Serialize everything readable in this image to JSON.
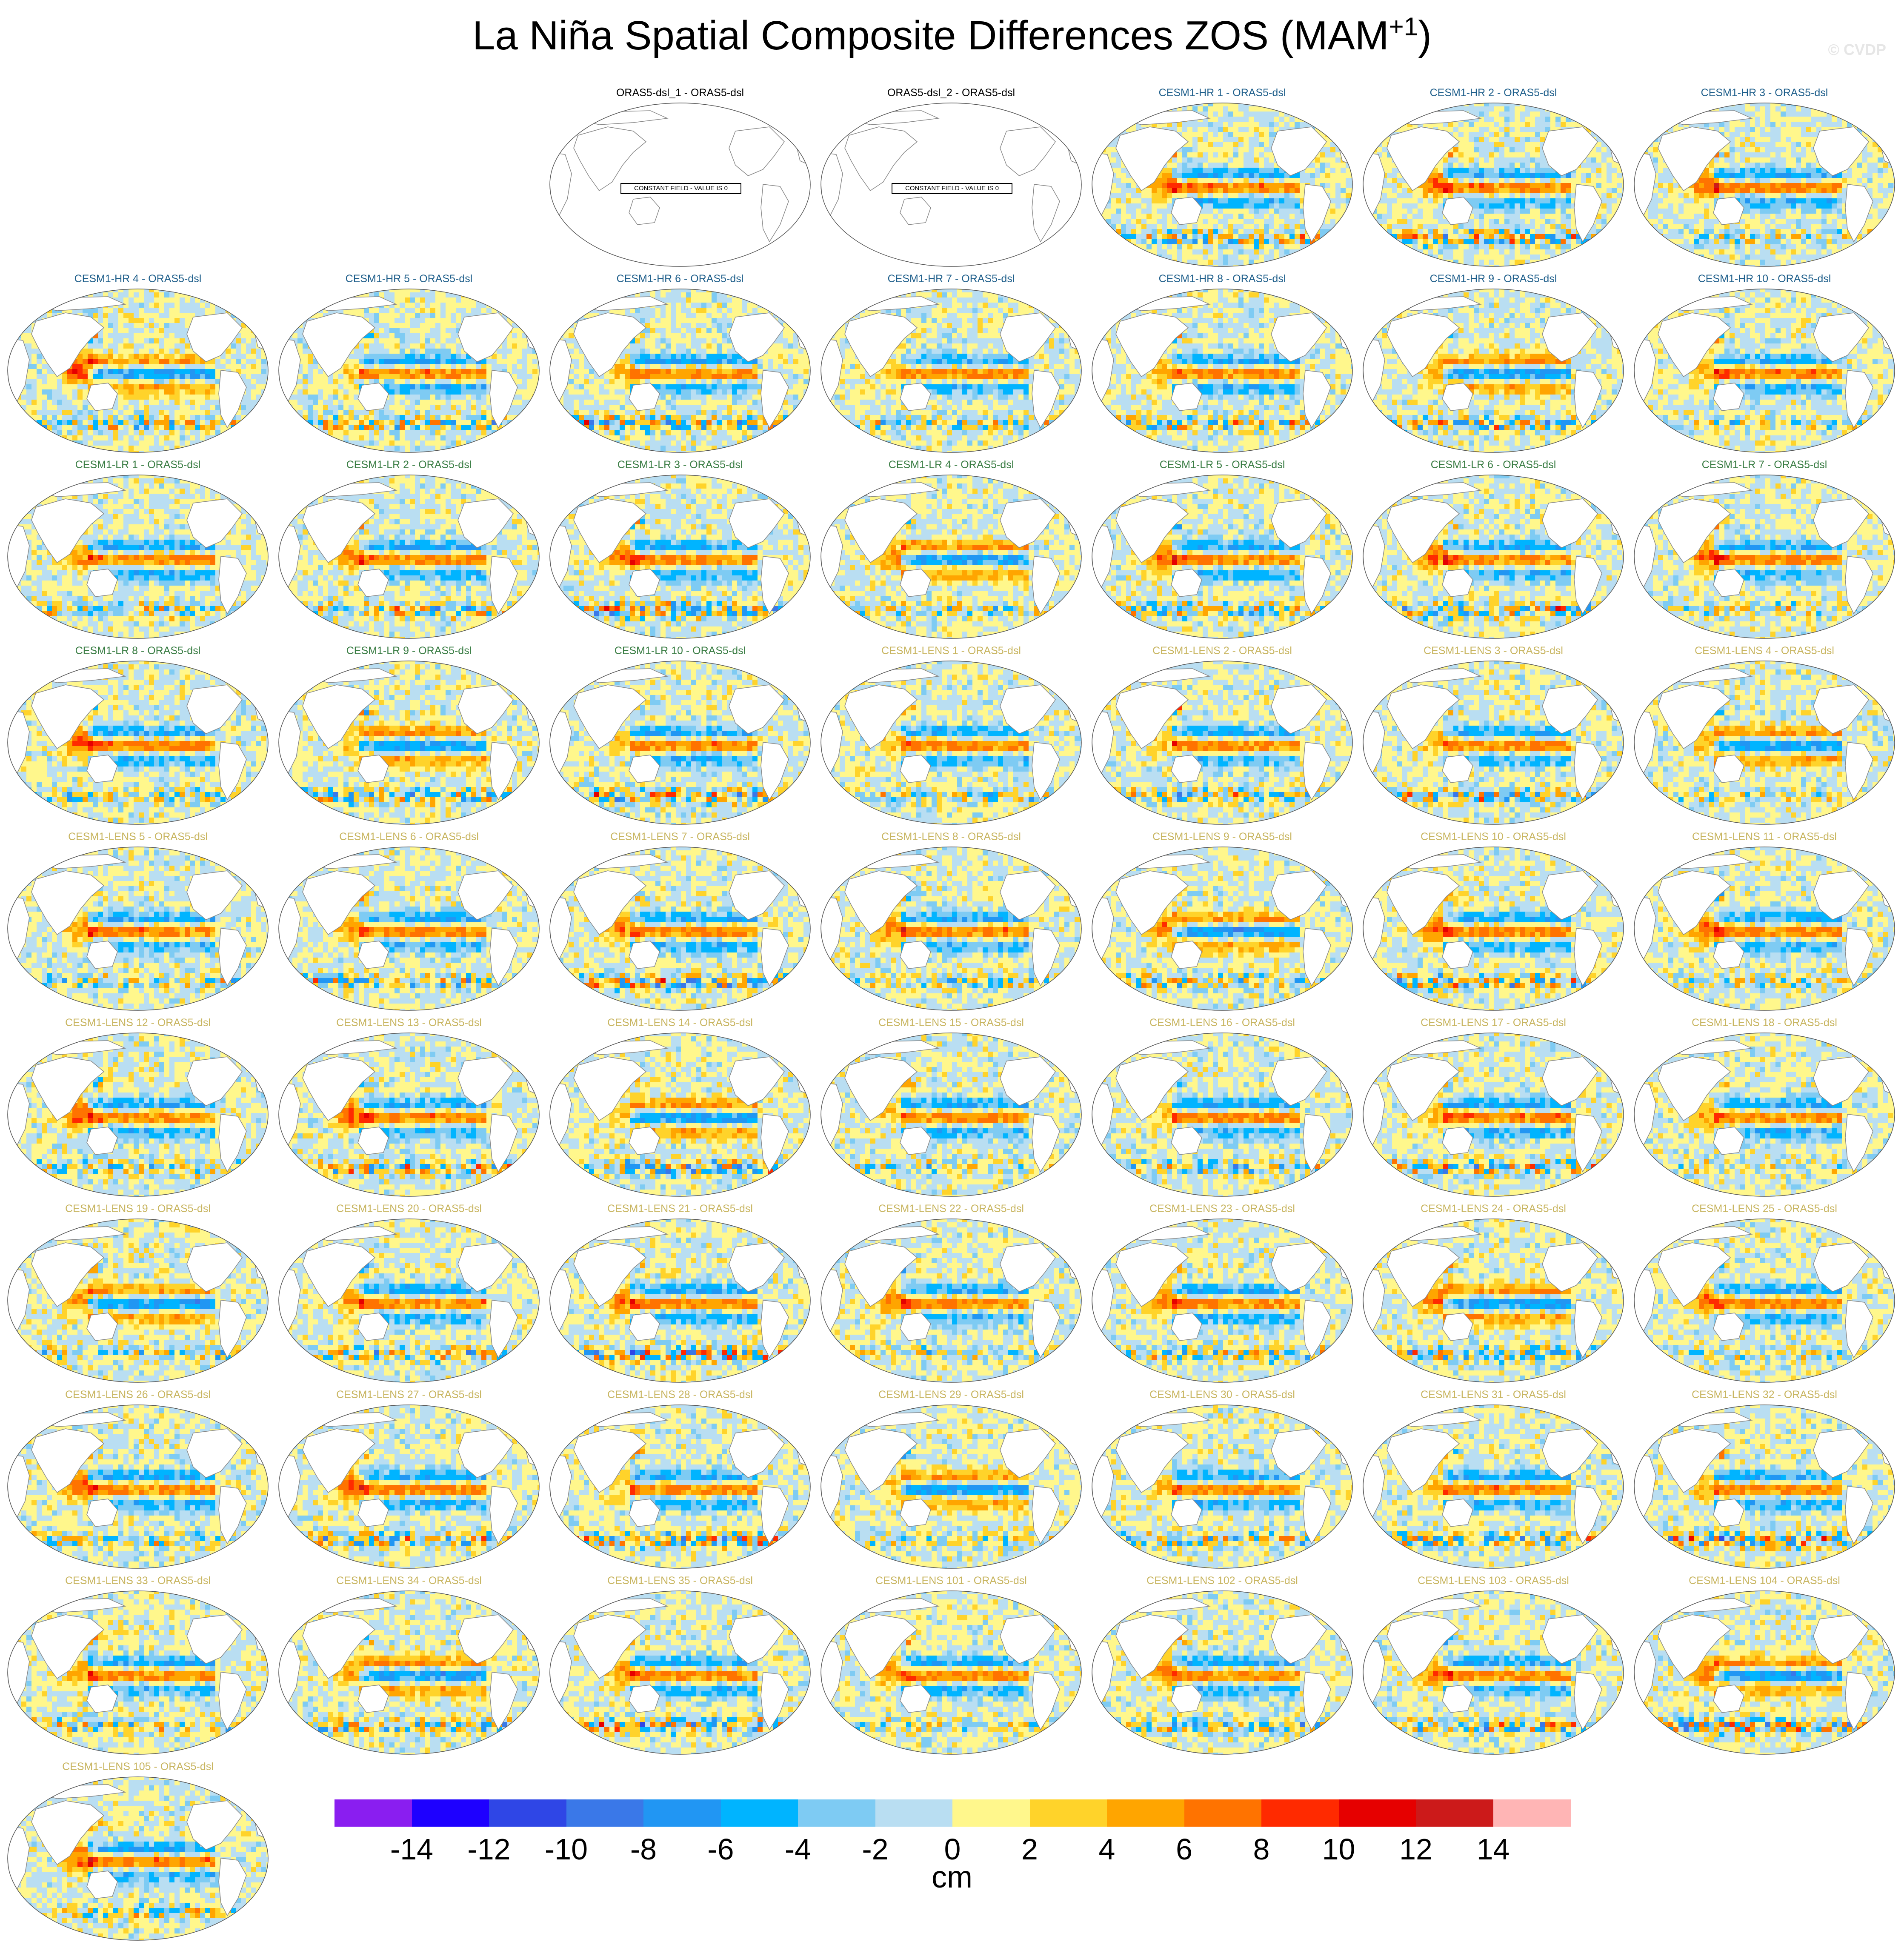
{
  "title": {
    "main": "La Niña Spatial Composite Differences ZOS (MAM",
    "season_sup": "+1",
    "close": ")"
  },
  "watermark": "© CVDP",
  "chart_data": {
    "type": "heatmap",
    "title": "La Niña Spatial Composite Differences ZOS (MAM+1)",
    "projection": "Robinson (global, Pacific-centered)",
    "units": "cm",
    "panels": [
      {
        "label": "ORAS5-dsl_1 - ORAS5-dsl",
        "group": "ORAS5",
        "constant_field": "CONSTANT FIELD - VALUE IS 0"
      },
      {
        "label": "ORAS5-dsl_2 - ORAS5-dsl",
        "group": "ORAS5",
        "constant_field": "CONSTANT FIELD - VALUE IS 0"
      },
      {
        "label": "CESM1-HR 1 - ORAS5-dsl",
        "group": "HR"
      },
      {
        "label": "CESM1-HR 2 - ORAS5-dsl",
        "group": "HR"
      },
      {
        "label": "CESM1-HR 3 - ORAS5-dsl",
        "group": "HR"
      },
      {
        "label": "CESM1-HR 4 - ORAS5-dsl",
        "group": "HR"
      },
      {
        "label": "CESM1-HR 5 - ORAS5-dsl",
        "group": "HR"
      },
      {
        "label": "CESM1-HR 6 - ORAS5-dsl",
        "group": "HR"
      },
      {
        "label": "CESM1-HR 7 - ORAS5-dsl",
        "group": "HR"
      },
      {
        "label": "CESM1-HR 8 - ORAS5-dsl",
        "group": "HR"
      },
      {
        "label": "CESM1-HR 9 - ORAS5-dsl",
        "group": "HR"
      },
      {
        "label": "CESM1-HR 10 - ORAS5-dsl",
        "group": "HR"
      },
      {
        "label": "CESM1-LR 1 - ORAS5-dsl",
        "group": "LR"
      },
      {
        "label": "CESM1-LR 2 - ORAS5-dsl",
        "group": "LR"
      },
      {
        "label": "CESM1-LR 3 - ORAS5-dsl",
        "group": "LR"
      },
      {
        "label": "CESM1-LR 4 - ORAS5-dsl",
        "group": "LR"
      },
      {
        "label": "CESM1-LR 5 - ORAS5-dsl",
        "group": "LR"
      },
      {
        "label": "CESM1-LR 6 - ORAS5-dsl",
        "group": "LR"
      },
      {
        "label": "CESM1-LR 7 - ORAS5-dsl",
        "group": "LR"
      },
      {
        "label": "CESM1-LR 8 - ORAS5-dsl",
        "group": "LR"
      },
      {
        "label": "CESM1-LR 9 - ORAS5-dsl",
        "group": "LR"
      },
      {
        "label": "CESM1-LR 10 - ORAS5-dsl",
        "group": "LR"
      },
      {
        "label": "CESM1-LENS 1 - ORAS5-dsl",
        "group": "LENS"
      },
      {
        "label": "CESM1-LENS 2 - ORAS5-dsl",
        "group": "LENS"
      },
      {
        "label": "CESM1-LENS 3 - ORAS5-dsl",
        "group": "LENS"
      },
      {
        "label": "CESM1-LENS 4 - ORAS5-dsl",
        "group": "LENS"
      },
      {
        "label": "CESM1-LENS 5 - ORAS5-dsl",
        "group": "LENS"
      },
      {
        "label": "CESM1-LENS 6 - ORAS5-dsl",
        "group": "LENS"
      },
      {
        "label": "CESM1-LENS 7 - ORAS5-dsl",
        "group": "LENS"
      },
      {
        "label": "CESM1-LENS 8 - ORAS5-dsl",
        "group": "LENS"
      },
      {
        "label": "CESM1-LENS 9 - ORAS5-dsl",
        "group": "LENS"
      },
      {
        "label": "CESM1-LENS 10 - ORAS5-dsl",
        "group": "LENS"
      },
      {
        "label": "CESM1-LENS 11 - ORAS5-dsl",
        "group": "LENS"
      },
      {
        "label": "CESM1-LENS 12 - ORAS5-dsl",
        "group": "LENS"
      },
      {
        "label": "CESM1-LENS 13 - ORAS5-dsl",
        "group": "LENS"
      },
      {
        "label": "CESM1-LENS 14 - ORAS5-dsl",
        "group": "LENS"
      },
      {
        "label": "CESM1-LENS 15 - ORAS5-dsl",
        "group": "LENS"
      },
      {
        "label": "CESM1-LENS 16 - ORAS5-dsl",
        "group": "LENS"
      },
      {
        "label": "CESM1-LENS 17 - ORAS5-dsl",
        "group": "LENS"
      },
      {
        "label": "CESM1-LENS 18 - ORAS5-dsl",
        "group": "LENS"
      },
      {
        "label": "CESM1-LENS 19 - ORAS5-dsl",
        "group": "LENS"
      },
      {
        "label": "CESM1-LENS 20 - ORAS5-dsl",
        "group": "LENS"
      },
      {
        "label": "CESM1-LENS 21 - ORAS5-dsl",
        "group": "LENS"
      },
      {
        "label": "CESM1-LENS 22 - ORAS5-dsl",
        "group": "LENS"
      },
      {
        "label": "CESM1-LENS 23 - ORAS5-dsl",
        "group": "LENS"
      },
      {
        "label": "CESM1-LENS 24 - ORAS5-dsl",
        "group": "LENS"
      },
      {
        "label": "CESM1-LENS 25 - ORAS5-dsl",
        "group": "LENS"
      },
      {
        "label": "CESM1-LENS 26 - ORAS5-dsl",
        "group": "LENS"
      },
      {
        "label": "CESM1-LENS 27 - ORAS5-dsl",
        "group": "LENS"
      },
      {
        "label": "CESM1-LENS 28 - ORAS5-dsl",
        "group": "LENS"
      },
      {
        "label": "CESM1-LENS 29 - ORAS5-dsl",
        "group": "LENS"
      },
      {
        "label": "CESM1-LENS 30 - ORAS5-dsl",
        "group": "LENS"
      },
      {
        "label": "CESM1-LENS 31 - ORAS5-dsl",
        "group": "LENS"
      },
      {
        "label": "CESM1-LENS 32 - ORAS5-dsl",
        "group": "LENS"
      },
      {
        "label": "CESM1-LENS 33 - ORAS5-dsl",
        "group": "LENS"
      },
      {
        "label": "CESM1-LENS 34 - ORAS5-dsl",
        "group": "LENS"
      },
      {
        "label": "CESM1-LENS 35 - ORAS5-dsl",
        "group": "LENS"
      },
      {
        "label": "CESM1-LENS 101 - ORAS5-dsl",
        "group": "LENS"
      },
      {
        "label": "CESM1-LENS 102 - ORAS5-dsl",
        "group": "LENS"
      },
      {
        "label": "CESM1-LENS 103 - ORAS5-dsl",
        "group": "LENS"
      },
      {
        "label": "CESM1-LENS 104 - ORAS5-dsl",
        "group": "LENS"
      },
      {
        "label": "CESM1-LENS 105 - ORAS5-dsl",
        "group": "LENS"
      }
    ],
    "group_colors": {
      "ORAS5": "#000000",
      "HR": "#1f5f8b",
      "LR": "#3a7d44",
      "LENS": "#c8b560"
    },
    "colorbar": {
      "label": "cm",
      "levels": [
        -14,
        -12,
        -10,
        -8,
        -6,
        -4,
        -2,
        0,
        2,
        4,
        6,
        8,
        10,
        12,
        14
      ],
      "tick_labels": [
        "-14",
        "-12",
        "-10",
        "-8",
        "-6",
        "-4",
        "-2",
        "0",
        "2",
        "4",
        "6",
        "8",
        "10",
        "12",
        "14"
      ],
      "colors": [
        "#8a1ef0",
        "#1e00ff",
        "#2f46e6",
        "#3a78e8",
        "#2196f3",
        "#00b4ff",
        "#7ecbf3",
        "#b9def2",
        "#fff78c",
        "#ffd32a",
        "#ffa500",
        "#ff7300",
        "#ff2a00",
        "#e60000",
        "#cc1a1a",
        "#ffb5b5"
      ]
    },
    "land_color": "#ffffff",
    "coastline_color": "#888888"
  }
}
